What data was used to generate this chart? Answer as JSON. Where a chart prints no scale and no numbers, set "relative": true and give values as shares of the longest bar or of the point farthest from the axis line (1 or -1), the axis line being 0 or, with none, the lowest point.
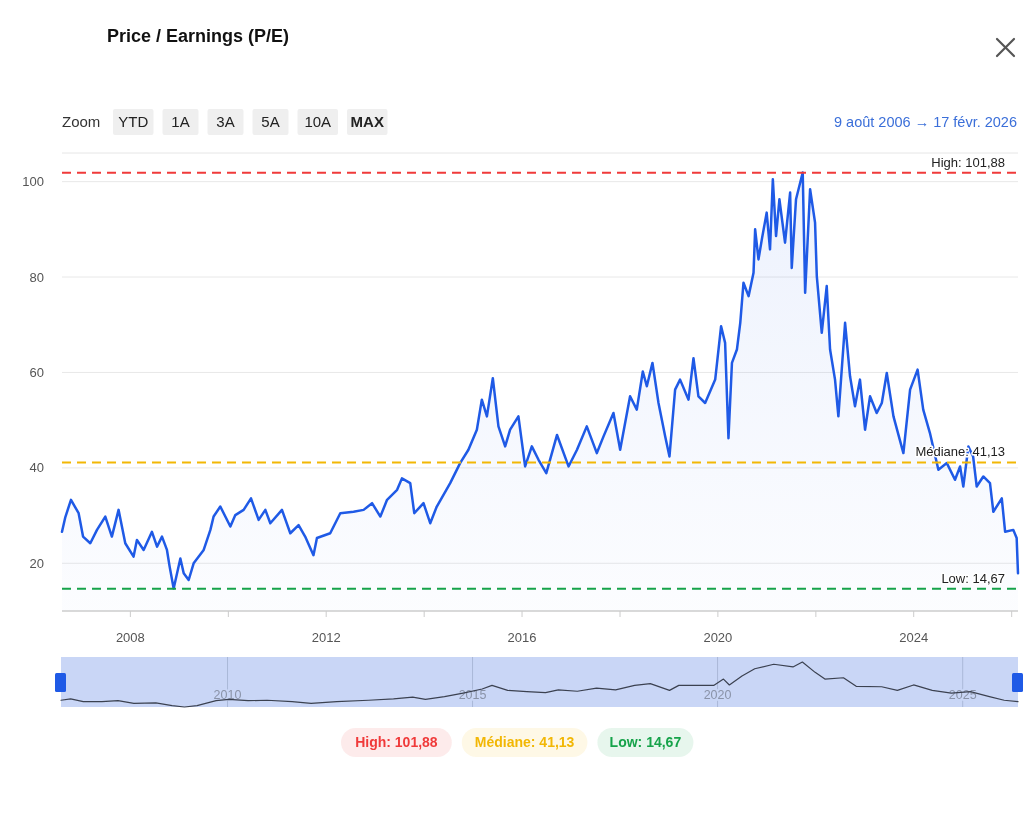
{
  "chart_data": [
    {
      "type": "area",
      "title": "Price / Earnings (P/E)",
      "annotations": [
        "Zoom",
        "YTD",
        "1A",
        "3A",
        "5A",
        "10A",
        "MAX",
        "9 août 2006 → 17 févr. 2026"
      ],
      "x": [
        "2006-08-09",
        "2006-09-03",
        "2006-10-15",
        "2006-12-11",
        "2007-01-13",
        "2007-03-08",
        "2007-04-27",
        "2007-06-28",
        "2007-08-16",
        "2007-10-05",
        "2007-11-24",
        "2008-01-25",
        "2008-02-19",
        "2008-04-09",
        "2008-06-10",
        "2008-07-18",
        "2008-08-24",
        "2008-09-30",
        "2008-10-20",
        "2008-11-19",
        "2009-01-08",
        "2009-02-02",
        "2009-03-11",
        "2009-04-17",
        "2009-07-01",
        "2009-08-20",
        "2009-09-13",
        "2009-11-02",
        "2010-01-16",
        "2010-02-22",
        "2010-04-25",
        "2010-06-19",
        "2010-08-15",
        "2010-10-04",
        "2010-11-10",
        "2011-02-05",
        "2011-04-08",
        "2011-06-09",
        "2011-07-28",
        "2011-09-28",
        "2011-10-24",
        "2012-01-31",
        "2012-04-15",
        "2012-07-23",
        "2012-10-06",
        "2012-12-08",
        "2013-02-08",
        "2013-03-30",
        "2013-06-13",
        "2013-07-19",
        "2013-09-19",
        "2013-10-19",
        "2013-12-27",
        "2014-02-15",
        "2014-04-05",
        "2014-07-14",
        "2014-09-26",
        "2014-11-27",
        "2015-01-29",
        "2015-03-07",
        "2015-04-14",
        "2015-05-28",
        "2015-07-09",
        "2015-08-28",
        "2015-10-04",
        "2015-12-05",
        "2016-01-24",
        "2016-03-14",
        "2016-05-03",
        "2016-06-30",
        "2016-09-18",
        "2016-12-13",
        "2017-02-14",
        "2017-04-28",
        "2017-07-12",
        "2017-08-31",
        "2017-11-13",
        "2018-01-02",
        "2018-03-17",
        "2018-05-06",
        "2018-06-20",
        "2018-07-20",
        "2018-08-31",
        "2018-10-15",
        "2018-12-04",
        "2019-01-05",
        "2019-02-16",
        "2019-03-25",
        "2019-05-27",
        "2019-07-03",
        "2019-08-09",
        "2019-09-28",
        "2019-12-12",
        "2020-01-25",
        "2020-02-24",
        "2020-03-20",
        "2020-04-15",
        "2020-05-22",
        "2020-06-16",
        "2020-07-10",
        "2020-08-17",
        "2020-09-23",
        "2020-10-05",
        "2020-10-30",
        "2020-11-24",
        "2020-12-30",
        "2021-01-24",
        "2021-02-14",
        "2021-03-10",
        "2021-04-04",
        "2021-05-16",
        "2021-06-23",
        "2021-07-05",
        "2021-08-06",
        "2021-09-25",
        "2021-10-13",
        "2021-11-19",
        "2021-12-26",
        "2022-01-08",
        "2022-02-14",
        "2022-03-23",
        "2022-04-17",
        "2022-05-24",
        "2022-06-18",
        "2022-08-07",
        "2022-09-13",
        "2022-10-20",
        "2022-11-26",
        "2023-01-03",
        "2023-02-09",
        "2023-03-31",
        "2023-05-08",
        "2023-06-14",
        "2023-08-03",
        "2023-10-16",
        "2023-12-05",
        "2024-01-30",
        "2024-03-12",
        "2024-05-01",
        "2024-07-03",
        "2024-09-04",
        "2024-11-04",
        "2024-12-12",
        "2025-01-05",
        "2025-02-12",
        "2025-03-19",
        "2025-04-15",
        "2025-06-03",
        "2025-07-23",
        "2025-08-17",
        "2025-10-19",
        "2025-11-13",
        "2026-01-13",
        "2026-02-07",
        "2026-02-17"
      ],
      "values": [
        26.6,
        29.7,
        33.3,
        30.5,
        25.6,
        24.2,
        27.0,
        29.8,
        25.6,
        31.2,
        24.2,
        21.4,
        24.9,
        22.8,
        26.6,
        23.5,
        25.6,
        22.8,
        19.3,
        14.7,
        21.0,
        17.9,
        16.5,
        20.0,
        22.8,
        27.0,
        29.8,
        31.9,
        27.7,
        30.1,
        31.2,
        33.6,
        29.1,
        31.2,
        28.4,
        31.2,
        26.3,
        28.0,
        25.6,
        21.7,
        25.3,
        26.3,
        30.5,
        30.8,
        31.2,
        32.6,
        29.8,
        33.3,
        35.4,
        37.8,
        36.8,
        30.5,
        32.6,
        28.4,
        31.9,
        36.8,
        41.0,
        43.8,
        48.0,
        54.3,
        50.8,
        58.8,
        48.7,
        44.5,
        48.0,
        50.8,
        40.3,
        44.5,
        41.7,
        38.9,
        46.9,
        40.3,
        43.8,
        48.7,
        43.1,
        46.6,
        51.5,
        43.8,
        55.0,
        52.2,
        60.2,
        57.1,
        62.0,
        53.6,
        46.6,
        42.4,
        56.4,
        58.5,
        54.3,
        63.0,
        55.0,
        53.6,
        58.5,
        69.7,
        66.2,
        46.2,
        62.0,
        64.8,
        70.4,
        78.8,
        76.0,
        80.9,
        90.0,
        83.7,
        87.9,
        93.5,
        85.8,
        100.5,
        88.6,
        96.3,
        87.2,
        97.7,
        81.9,
        96.3,
        101.9,
        76.7,
        98.4,
        91.4,
        80.2,
        68.3,
        78.1,
        64.8,
        58.5,
        50.8,
        70.4,
        59.2,
        52.9,
        58.5,
        48.0,
        55.0,
        51.5,
        53.6,
        59.9,
        50.8,
        43.1,
        56.4,
        60.6,
        52.2,
        47.3,
        39.6,
        41.0,
        37.5,
        40.3,
        36.1,
        44.5,
        42.4,
        36.1,
        38.2,
        36.8,
        30.8,
        33.6,
        26.6,
        27.0,
        25.3,
        17.9
      ],
      "color": "#1f5ae6",
      "xlim": [
        "2006-08-09",
        "2026-02-17"
      ],
      "xticks": [
        "2008",
        {
          "value": "2010",
          "label": null
        },
        "2012",
        {
          "value": "2014",
          "label": null
        },
        "2016",
        {
          "value": "2018",
          "label": null
        },
        "2020",
        {
          "value": "2022",
          "label": null
        },
        "2024",
        {
          "value": "2026",
          "label": null
        }
      ],
      "ylim": [
        10,
        106
      ],
      "yticks": [
        20,
        40,
        60,
        80,
        100
      ],
      "grid": "y",
      "ref_lines": [
        {
          "axis": "y",
          "value": 101.88,
          "label": "High: 101,88",
          "color": "#f03a3a",
          "line_style": "dashed"
        },
        {
          "axis": "y",
          "value": 41.13,
          "label": "Médiane: 41,13",
          "color": "#f2b705",
          "line_style": "dashed"
        },
        {
          "axis": "y",
          "value": 14.67,
          "label": "Low: 14,67",
          "color": "#16a34a",
          "line_style": "dashed"
        }
      ]
    },
    {
      "type": "line",
      "relative": true,
      "color": "#3b4150",
      "xlim": [
        "2006-08-09",
        "2026-02-17"
      ],
      "xticks": [
        "2010",
        "2015",
        "2020",
        "2025"
      ],
      "grid": "x",
      "x": [
        "2006-08-09",
        "2006-10-20",
        "2007-01-22",
        "2007-06-10",
        "2007-10-08",
        "2008-02-03",
        "2008-07-16",
        "2008-11-14",
        "2009-02-14",
        "2009-05-19",
        "2009-10-08",
        "2010-01-11",
        "2010-06-03",
        "2010-10-23",
        "2011-04-27",
        "2011-09-16",
        "2012-03-25",
        "2012-11-17",
        "2013-05-22",
        "2013-10-12",
        "2014-01-15",
        "2014-06-06",
        "2014-10-23",
        "2015-03-14",
        "2015-05-26",
        "2015-09-20",
        "2016-02-10",
        "2016-06-28",
        "2016-10-01",
        "2017-02-20",
        "2017-07-13",
        "2017-12-02",
        "2018-04-23",
        "2018-08-18",
        "2019-01-08",
        "2019-03-18",
        "2019-08-08",
        "2019-12-03",
        "2020-02-14",
        "2020-03-29",
        "2020-07-01",
        "2020-10-04",
        "2021-02-23",
        "2021-07-16",
        "2021-09-24",
        "2021-12-28",
        "2022-03-11",
        "2022-07-27",
        "2022-10-30",
        "2023-05-08",
        "2023-09-02",
        "2024-01-01",
        "2024-05-19",
        "2024-10-08",
        "2025-02-27",
        "2025-07-19",
        "2025-11-06",
        "2026-02-17"
      ],
      "values": [
        0.15,
        0.18,
        0.12,
        0.12,
        0.14,
        0.08,
        0.09,
        0.03,
        0,
        0.03,
        0.14,
        0.17,
        0.14,
        0.15,
        0.12,
        0.08,
        0.12,
        0.15,
        0.18,
        0.22,
        0.17,
        0.23,
        0.31,
        0.4,
        0.48,
        0.37,
        0.34,
        0.32,
        0.38,
        0.35,
        0.42,
        0.38,
        0.48,
        0.52,
        0.37,
        0.48,
        0.48,
        0.48,
        0.62,
        0.49,
        0.69,
        0.85,
        0.95,
        0.89,
        1,
        0.77,
        0.62,
        0.65,
        0.46,
        0.45,
        0.37,
        0.49,
        0.37,
        0.31,
        0.34,
        0.23,
        0.15,
        0.12
      ]
    }
  ]
}
